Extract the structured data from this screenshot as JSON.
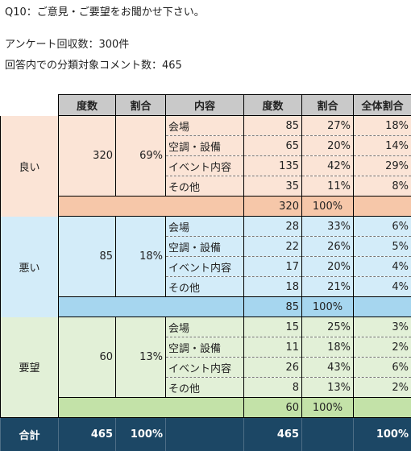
{
  "intro": {
    "question": "Q10：ご意見・ご要望をお聞かせ下さい。",
    "responses": "アンケート回収数：300件",
    "comments": "回答内での分類対象コメント数：465"
  },
  "table": {
    "headers": [
      "度数",
      "割合",
      "内容",
      "度数",
      "割合",
      "全体割合"
    ],
    "groups": [
      {
        "name": "良い",
        "count": "320",
        "pct": "69%",
        "rows": [
          {
            "label": "会場",
            "count": "85",
            "pct": "27%",
            "overall": "18%"
          },
          {
            "label": "空調・設備",
            "count": "65",
            "pct": "20%",
            "overall": "14%"
          },
          {
            "label": "イベント内容",
            "count": "135",
            "pct": "42%",
            "overall": "29%"
          },
          {
            "label": "その他",
            "count": "35",
            "pct": "11%",
            "overall": "8%"
          }
        ],
        "subtotal": {
          "count": "320",
          "pct": "100%"
        }
      },
      {
        "name": "悪い",
        "count": "85",
        "pct": "18%",
        "rows": [
          {
            "label": "会場",
            "count": "28",
            "pct": "33%",
            "overall": "6%"
          },
          {
            "label": "空調・設備",
            "count": "22",
            "pct": "26%",
            "overall": "5%"
          },
          {
            "label": "イベント内容",
            "count": "17",
            "pct": "20%",
            "overall": "4%"
          },
          {
            "label": "その他",
            "count": "18",
            "pct": "21%",
            "overall": "4%"
          }
        ],
        "subtotal": {
          "count": "85",
          "pct": "100%"
        }
      },
      {
        "name": "要望",
        "count": "60",
        "pct": "13%",
        "rows": [
          {
            "label": "会場",
            "count": "15",
            "pct": "25%",
            "overall": "3%"
          },
          {
            "label": "空調・設備",
            "count": "11",
            "pct": "18%",
            "overall": "2%"
          },
          {
            "label": "イベント内容",
            "count": "26",
            "pct": "43%",
            "overall": "6%"
          },
          {
            "label": "その他",
            "count": "8",
            "pct": "13%",
            "overall": "2%"
          }
        ],
        "subtotal": {
          "count": "60",
          "pct": "100%"
        }
      }
    ],
    "total": {
      "label": "合計",
      "count": "465",
      "pct": "100%",
      "count2": "465",
      "overall": "100%"
    }
  },
  "colors": {
    "header_bg": "#c9c9c9",
    "good_bg": "#fbe4d6",
    "good_sub": "#f6c7a9",
    "bad_bg": "#d3ecf9",
    "bad_sub": "#a6d6ef",
    "req_bg": "#e2f0d7",
    "req_sub": "#c3e2a8",
    "total_bg": "#1c4765"
  }
}
